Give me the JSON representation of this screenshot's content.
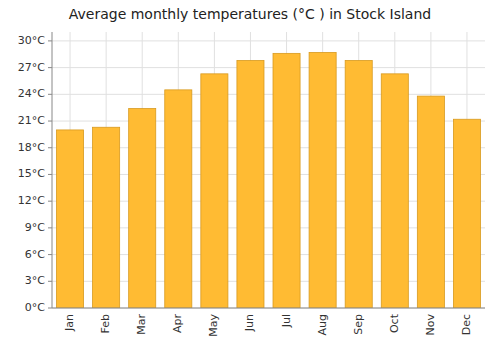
{
  "chart_data": {
    "type": "bar",
    "title": "Average monthly temperatures (°C ) in Stock Island",
    "categories": [
      "Jan",
      "Feb",
      "Mar",
      "Apr",
      "May",
      "Jun",
      "Jul",
      "Aug",
      "Sep",
      "Oct",
      "Nov",
      "Dec"
    ],
    "values": [
      20.0,
      20.3,
      22.4,
      24.5,
      26.3,
      27.8,
      28.6,
      28.7,
      27.8,
      26.3,
      23.8,
      21.2
    ],
    "color": "#FFBB33",
    "ylim": [
      0,
      31
    ],
    "yticks": [
      {
        "value": 0,
        "label": "0°C"
      },
      {
        "value": 3,
        "label": "3°C"
      },
      {
        "value": 6,
        "label": "6°C"
      },
      {
        "value": 9,
        "label": "9°C"
      },
      {
        "value": 12,
        "label": "12°C"
      },
      {
        "value": 15,
        "label": "15°C"
      },
      {
        "value": 18,
        "label": "18°C"
      },
      {
        "value": 21,
        "label": "21°C"
      },
      {
        "value": 24,
        "label": "24°C"
      },
      {
        "value": 27,
        "label": "27°C"
      },
      {
        "value": 30,
        "label": "30°C"
      }
    ],
    "grid": true
  }
}
